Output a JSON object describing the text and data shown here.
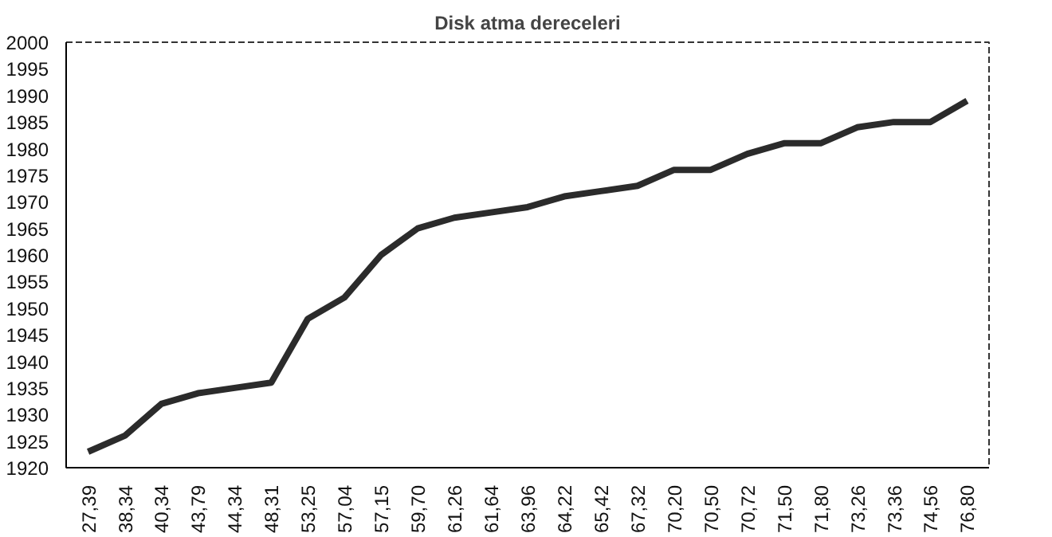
{
  "chart_data": {
    "type": "line",
    "title": "Disk atma dereceleri",
    "categories": [
      "27,39",
      "38,34",
      "40,34",
      "43,79",
      "44,34",
      "48,31",
      "53,25",
      "57,04",
      "57,15",
      "59,70",
      "61,26",
      "61,64",
      "63,96",
      "64,22",
      "65,42",
      "67,32",
      "70,20",
      "70,50",
      "70,72",
      "71,50",
      "71,80",
      "73,26",
      "73,36",
      "74,56",
      "76,80"
    ],
    "series": [
      {
        "color": "#2b2b2b",
        "values": [
          1923,
          1926,
          1932,
          1934,
          1935,
          1936,
          1948,
          1952,
          1960,
          1965,
          1967,
          1968,
          1969,
          1971,
          1972,
          1973,
          1976,
          1976,
          1979,
          1981,
          1981,
          1984,
          1985,
          1985,
          1989
        ]
      }
    ],
    "ylim": [
      1920,
      2000
    ],
    "yticks": [
      1920,
      1925,
      1930,
      1935,
      1940,
      1945,
      1950,
      1955,
      1960,
      1965,
      1970,
      1975,
      1980,
      1985,
      1990,
      1995,
      2000
    ],
    "grid": false,
    "marker": "none",
    "line_style": "solid"
  }
}
